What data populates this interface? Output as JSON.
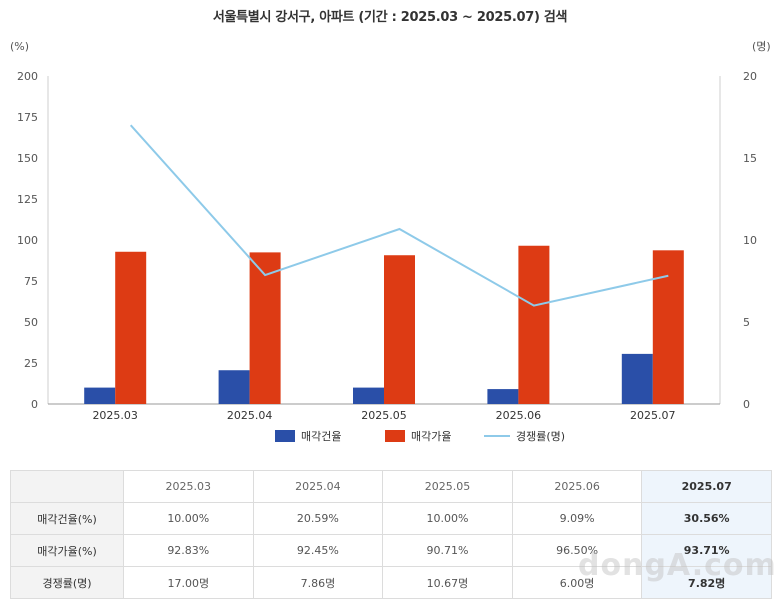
{
  "title": "서울특별시 강서구, 아파트 (기간 : 2025.03 ~ 2025.07) 검색",
  "chart_data": {
    "type": "bar",
    "categories": [
      "2025.03",
      "2025.04",
      "2025.05",
      "2025.06",
      "2025.07"
    ],
    "series": [
      {
        "name": "매각건율",
        "type": "bar",
        "axis": "left",
        "color": "#2a4fa8",
        "values": [
          10.0,
          20.59,
          10.0,
          9.09,
          30.56
        ]
      },
      {
        "name": "매각가율",
        "type": "bar",
        "axis": "left",
        "color": "#dd3b14",
        "values": [
          92.83,
          92.45,
          90.71,
          96.5,
          93.71
        ]
      },
      {
        "name": "경쟁률(명)",
        "type": "line",
        "axis": "right",
        "color": "#8ecae9",
        "values": [
          17.0,
          7.86,
          10.67,
          6.0,
          7.82
        ]
      }
    ],
    "ylabel_left": "(%)",
    "ylabel_right": "(명)",
    "ylim_left": [
      0,
      200
    ],
    "ylim_right": [
      0,
      20
    ],
    "yticks_left": [
      "0",
      "25",
      "50",
      "75",
      "100",
      "125",
      "150",
      "175",
      "200"
    ],
    "yticks_right": [
      "0",
      "5",
      "10",
      "15",
      "20"
    ],
    "legend_position": "bottom",
    "grid": false
  },
  "table": {
    "headers": [
      "2025.03",
      "2025.04",
      "2025.05",
      "2025.06",
      "2025.07"
    ],
    "rows": [
      {
        "label": "매각건율(%)",
        "cells": [
          "10.00%",
          "20.59%",
          "10.00%",
          "9.09%",
          "30.56%"
        ]
      },
      {
        "label": "매각가율(%)",
        "cells": [
          "92.83%",
          "92.45%",
          "90.71%",
          "96.50%",
          "93.71%"
        ]
      },
      {
        "label": "경쟁률(명)",
        "cells": [
          "17.00명",
          "7.86명",
          "10.67명",
          "6.00명",
          "7.82명"
        ]
      }
    ]
  },
  "watermark": "dongA.com"
}
